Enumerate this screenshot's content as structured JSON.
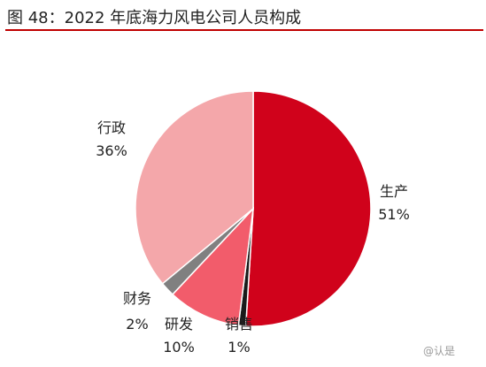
{
  "figure": {
    "title": "图 48：2022 年底海力风电公司人员构成"
  },
  "colors": {
    "title_rule": "#c00000",
    "slices": [
      "#d0021b",
      "#1a1a1a",
      "#f25c6b",
      "#808080",
      "#f4a7aa"
    ]
  },
  "chart_data": {
    "type": "pie",
    "title": "图 48：2022 年底海力风电公司人员构成",
    "start": "12 o'clock",
    "direction": "clockwise",
    "slices": [
      {
        "name": "生产",
        "value": 51,
        "value_label": "51%"
      },
      {
        "name": "销售",
        "value": 1,
        "value_label": "1%"
      },
      {
        "name": "研发",
        "value": 10,
        "value_label": "10%"
      },
      {
        "name": "财务",
        "value": 2,
        "value_label": "2%"
      },
      {
        "name": "行政",
        "value": 36,
        "value_label": "36%"
      }
    ]
  },
  "watermark": "@认是"
}
